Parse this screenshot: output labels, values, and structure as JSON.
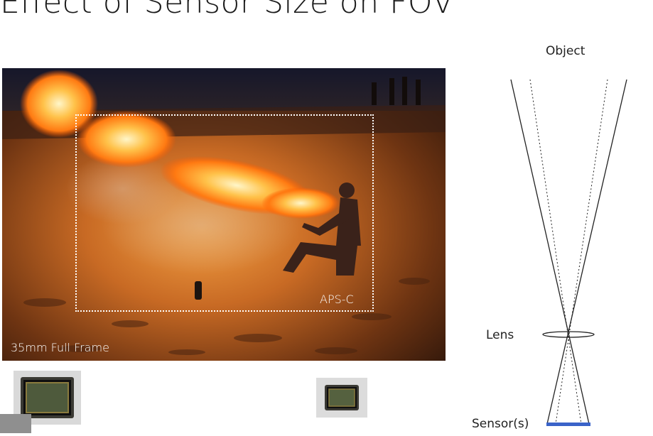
{
  "slide": {
    "title": "Effect of Sensor Size on FOV"
  },
  "photo": {
    "aps_label": "APS-C",
    "full_frame_label": "35mm Full Frame"
  },
  "diagram": {
    "object_label": "Object",
    "lens_label": "Lens",
    "sensor_label": "Sensor(s)",
    "sensor_color": "#3a63c9"
  }
}
